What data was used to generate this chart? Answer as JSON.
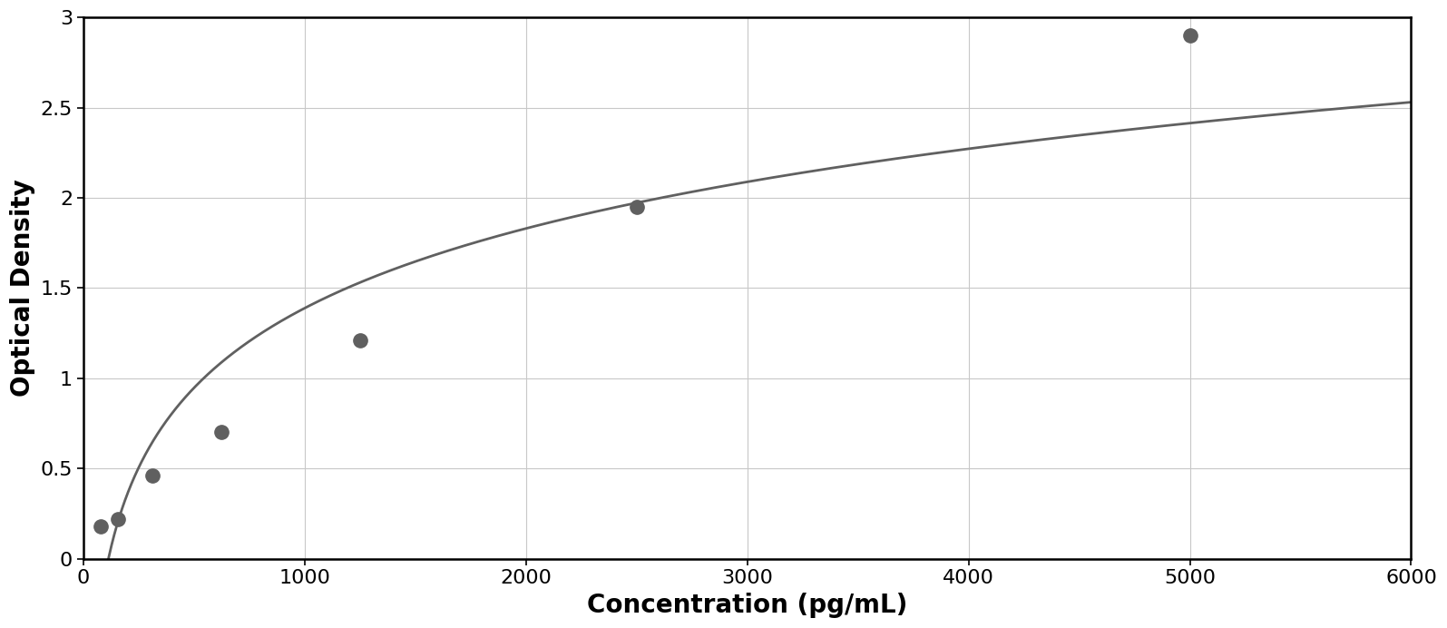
{
  "data_points_x": [
    78,
    156,
    312,
    625,
    1250,
    2500,
    5000
  ],
  "data_points_y": [
    0.18,
    0.22,
    0.46,
    0.7,
    1.21,
    1.95,
    2.9
  ],
  "xlabel": "Concentration (pg/mL)",
  "ylabel": "Optical Density",
  "xlim": [
    0,
    6000
  ],
  "ylim": [
    0,
    3.0
  ],
  "xticks": [
    0,
    1000,
    2000,
    3000,
    4000,
    5000,
    6000
  ],
  "yticks": [
    0,
    0.5,
    1.0,
    1.5,
    2.0,
    2.5,
    3.0
  ],
  "data_color": "#606060",
  "line_color": "#606060",
  "background_color": "#ffffff",
  "plot_bg_color": "#ffffff",
  "grid_color": "#c8c8c8",
  "xlabel_fontsize": 20,
  "ylabel_fontsize": 20,
  "tick_fontsize": 16,
  "marker_size": 11,
  "line_width": 2.0,
  "border_color": "#000000",
  "outer_border_color": "#aaaaaa"
}
